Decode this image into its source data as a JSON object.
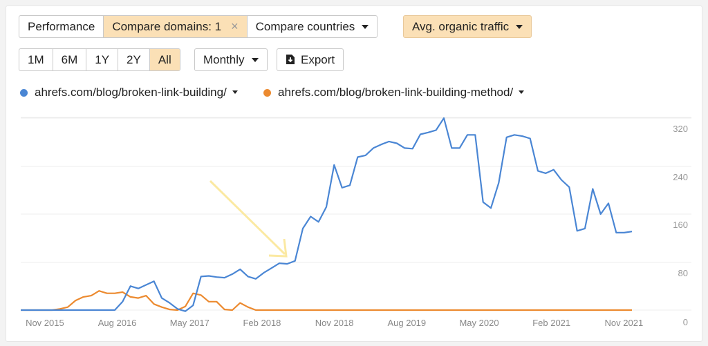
{
  "toolbar": {
    "performance_label": "Performance",
    "compare_domains_label": "Compare domains: 1",
    "close_icon": "×",
    "compare_countries_label": "Compare countries",
    "metric_label": "Avg. organic traffic"
  },
  "range_tabs": [
    "1M",
    "6M",
    "1Y",
    "2Y",
    "All"
  ],
  "range_active": "All",
  "interval_label": "Monthly",
  "export_label": "Export",
  "colors": {
    "series_blue": "#4a86d4",
    "series_orange": "#ec8a2f",
    "active_bg": "#fbe0b6",
    "annotation_arrow": "#fbe9a2"
  },
  "chart_data": {
    "type": "line",
    "x_ticks": [
      "Nov 2015",
      "Aug 2016",
      "May 2017",
      "Feb 2018",
      "Nov 2018",
      "Aug 2019",
      "May 2020",
      "Feb 2021",
      "Nov 2021"
    ],
    "y_ticks": [
      0,
      80,
      160,
      240,
      320
    ],
    "ylim": [
      0,
      320
    ],
    "grid": true,
    "x_start": "Aug 2015",
    "x_end": "Dec 2021",
    "series": [
      {
        "name": "ahrefs.com/blog/broken-link-building/",
        "color": "#4a86d4",
        "values": [
          0,
          0,
          0,
          0,
          0,
          0,
          0,
          0,
          0,
          0,
          0,
          0,
          0,
          14,
          40,
          36,
          42,
          48,
          20,
          12,
          2,
          -2,
          8,
          56,
          57,
          55,
          54,
          60,
          68,
          56,
          52,
          62,
          70,
          78,
          77,
          82,
          136,
          156,
          147,
          172,
          242,
          204,
          208,
          255,
          258,
          270,
          276,
          281,
          278,
          270,
          269,
          293,
          296,
          300,
          320,
          270,
          270,
          292,
          292,
          180,
          170,
          212,
          288,
          292,
          290,
          286,
          232,
          228,
          234,
          217,
          205,
          132,
          136,
          202,
          160,
          178,
          129,
          129,
          131
        ]
      },
      {
        "name": "ahrefs.com/blog/broken-link-building-method/",
        "color": "#ec8a2f",
        "values": [
          0,
          0,
          0,
          0,
          0,
          2,
          5,
          16,
          22,
          24,
          32,
          28,
          28,
          30,
          22,
          20,
          24,
          10,
          5,
          1,
          0,
          6,
          28,
          25,
          14,
          14,
          1,
          0,
          12,
          5,
          0,
          0,
          0,
          0,
          0,
          0,
          0,
          0,
          0,
          0,
          0,
          0,
          0,
          0,
          0,
          0,
          0,
          0,
          0,
          0,
          0,
          0,
          0,
          0,
          0,
          0,
          0,
          0,
          0,
          0,
          0,
          0,
          0,
          0,
          0,
          0,
          0,
          0,
          0,
          0,
          0,
          0,
          0,
          0,
          0,
          0,
          0,
          0,
          0
        ]
      }
    ]
  }
}
